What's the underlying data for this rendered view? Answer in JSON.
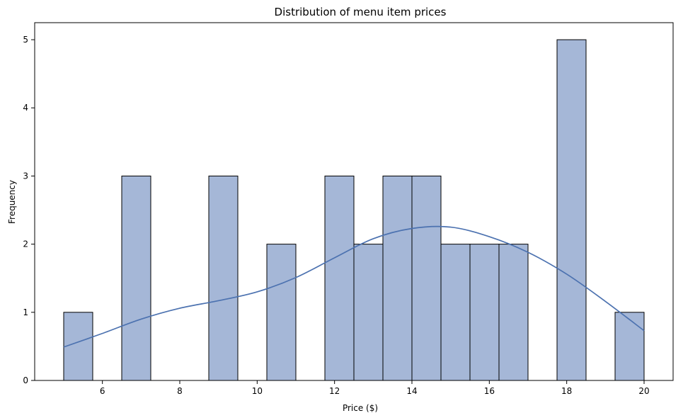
{
  "chart_data": {
    "type": "bar",
    "title": "Distribution of menu item prices",
    "xlabel": "Price ($)",
    "ylabel": "Frequency",
    "xlim": [
      4.25,
      20.75
    ],
    "ylim": [
      0,
      5.25
    ],
    "xticks": [
      6,
      8,
      10,
      12,
      14,
      16,
      18,
      20
    ],
    "yticks": [
      0,
      1,
      2,
      3,
      4,
      5
    ],
    "grid": false,
    "bins": [
      {
        "start": 5.0,
        "end": 5.75,
        "count": 1
      },
      {
        "start": 5.75,
        "end": 6.5,
        "count": 0
      },
      {
        "start": 6.5,
        "end": 7.25,
        "count": 3
      },
      {
        "start": 7.25,
        "end": 8.0,
        "count": 0
      },
      {
        "start": 8.0,
        "end": 8.75,
        "count": 0
      },
      {
        "start": 8.75,
        "end": 9.5,
        "count": 3
      },
      {
        "start": 9.5,
        "end": 10.25,
        "count": 0
      },
      {
        "start": 10.25,
        "end": 11.0,
        "count": 2
      },
      {
        "start": 11.0,
        "end": 11.75,
        "count": 0
      },
      {
        "start": 11.75,
        "end": 12.5,
        "count": 3
      },
      {
        "start": 12.5,
        "end": 13.25,
        "count": 2
      },
      {
        "start": 13.25,
        "end": 14.0,
        "count": 3
      },
      {
        "start": 14.0,
        "end": 14.75,
        "count": 3
      },
      {
        "start": 14.75,
        "end": 15.5,
        "count": 2
      },
      {
        "start": 15.5,
        "end": 16.25,
        "count": 2
      },
      {
        "start": 16.25,
        "end": 17.0,
        "count": 2
      },
      {
        "start": 17.0,
        "end": 17.75,
        "count": 0
      },
      {
        "start": 17.75,
        "end": 18.5,
        "count": 5
      },
      {
        "start": 18.5,
        "end": 19.25,
        "count": 0
      },
      {
        "start": 19.25,
        "end": 20.0,
        "count": 1
      }
    ],
    "kde": {
      "x": [
        5,
        6,
        7,
        8,
        9,
        10,
        11,
        12,
        13,
        14,
        15,
        16,
        17,
        18,
        19,
        20
      ],
      "y": [
        0.49,
        0.69,
        0.9,
        1.06,
        1.17,
        1.3,
        1.51,
        1.8,
        2.08,
        2.23,
        2.25,
        2.11,
        1.88,
        1.56,
        1.16,
        0.73
      ]
    },
    "colors": {
      "bar_fill": "#a5b7d7",
      "bar_edge": "#000000",
      "kde_line": "#4c72b0"
    }
  }
}
